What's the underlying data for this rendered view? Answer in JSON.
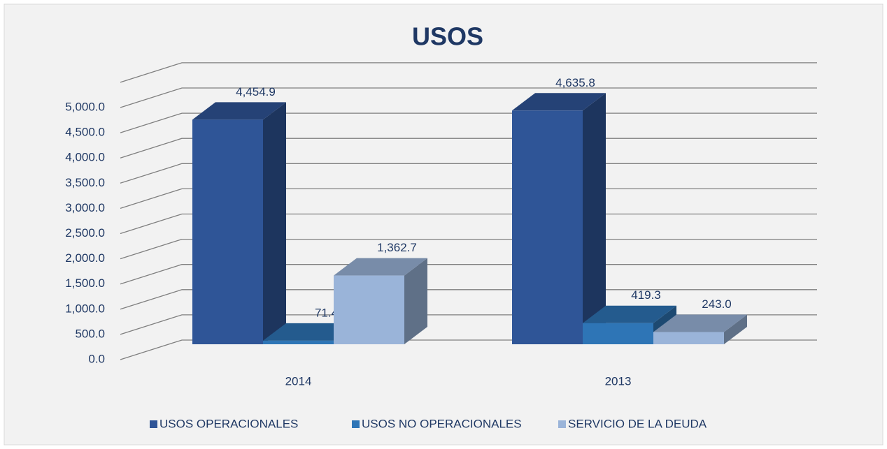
{
  "chart_data": {
    "type": "bar3d",
    "title": "USOS",
    "categories": [
      "2014",
      "2013"
    ],
    "series": [
      {
        "name": "USOS OPERACIONALES",
        "color": "#2f5597",
        "values": [
          4454.9,
          4635.8
        ],
        "value_labels": [
          "4,454.9",
          "4,635.8"
        ]
      },
      {
        "name": "USOS NO OPERACIONALES",
        "color": "#2e75b6",
        "values": [
          71.4,
          419.3
        ],
        "value_labels": [
          "71.4",
          "419.3"
        ]
      },
      {
        "name": "SERVICIO DE LA DEUDA",
        "color": "#9ab4d9",
        "values": [
          1362.7,
          243.0
        ],
        "value_labels": [
          "1,362.7",
          "243.0"
        ]
      }
    ],
    "ylim": [
      0,
      5500
    ],
    "yticks": [
      {
        "value": 0,
        "label": "0.0"
      },
      {
        "value": 500,
        "label": "500.0"
      },
      {
        "value": 1000,
        "label": "1,000.0"
      },
      {
        "value": 1500,
        "label": "1,500.0"
      },
      {
        "value": 2000,
        "label": "2,000.0"
      },
      {
        "value": 2500,
        "label": "2,500.0"
      },
      {
        "value": 3000,
        "label": "3,000.0"
      },
      {
        "value": 3500,
        "label": "3,500.0"
      },
      {
        "value": 4000,
        "label": "4,000.0"
      },
      {
        "value": 4500,
        "label": "4,500.0"
      },
      {
        "value": 5000,
        "label": "5,000.0"
      }
    ],
    "grid": true,
    "legend": "bottom"
  }
}
